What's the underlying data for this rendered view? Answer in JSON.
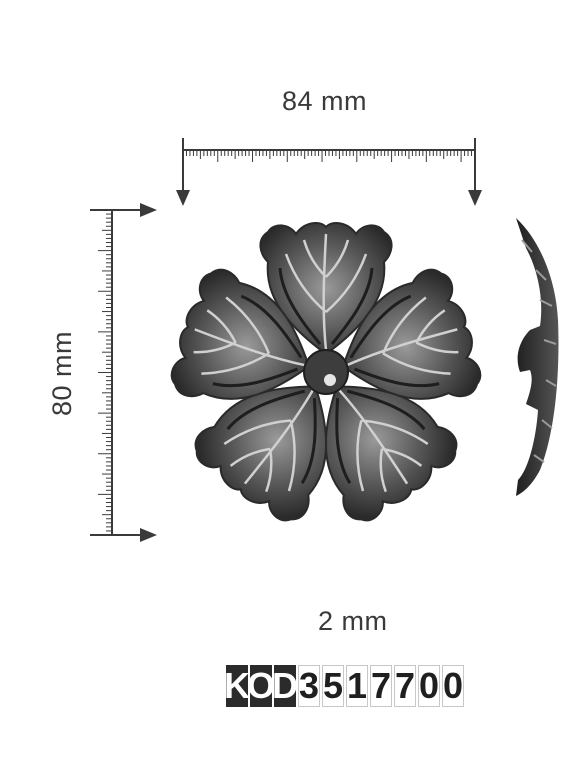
{
  "dimensions": {
    "width_label": "84 mm",
    "height_label": "80 mm",
    "thickness_label": "2 mm"
  },
  "product_code": {
    "prefix": [
      "K",
      "O",
      "D"
    ],
    "number": [
      "3",
      "5",
      "1",
      "7",
      "7",
      "0",
      "0"
    ]
  },
  "colors": {
    "ink": "#3a3a3a",
    "metal_dark": "#2a2a2a",
    "metal_mid": "#6b6b6b",
    "metal_light": "#bdbdbd",
    "code_dark_bg": "#2b2b2b"
  },
  "illustration": {
    "front_view": "five-petal-forged-rosette",
    "side_view": "rosette-profile"
  }
}
